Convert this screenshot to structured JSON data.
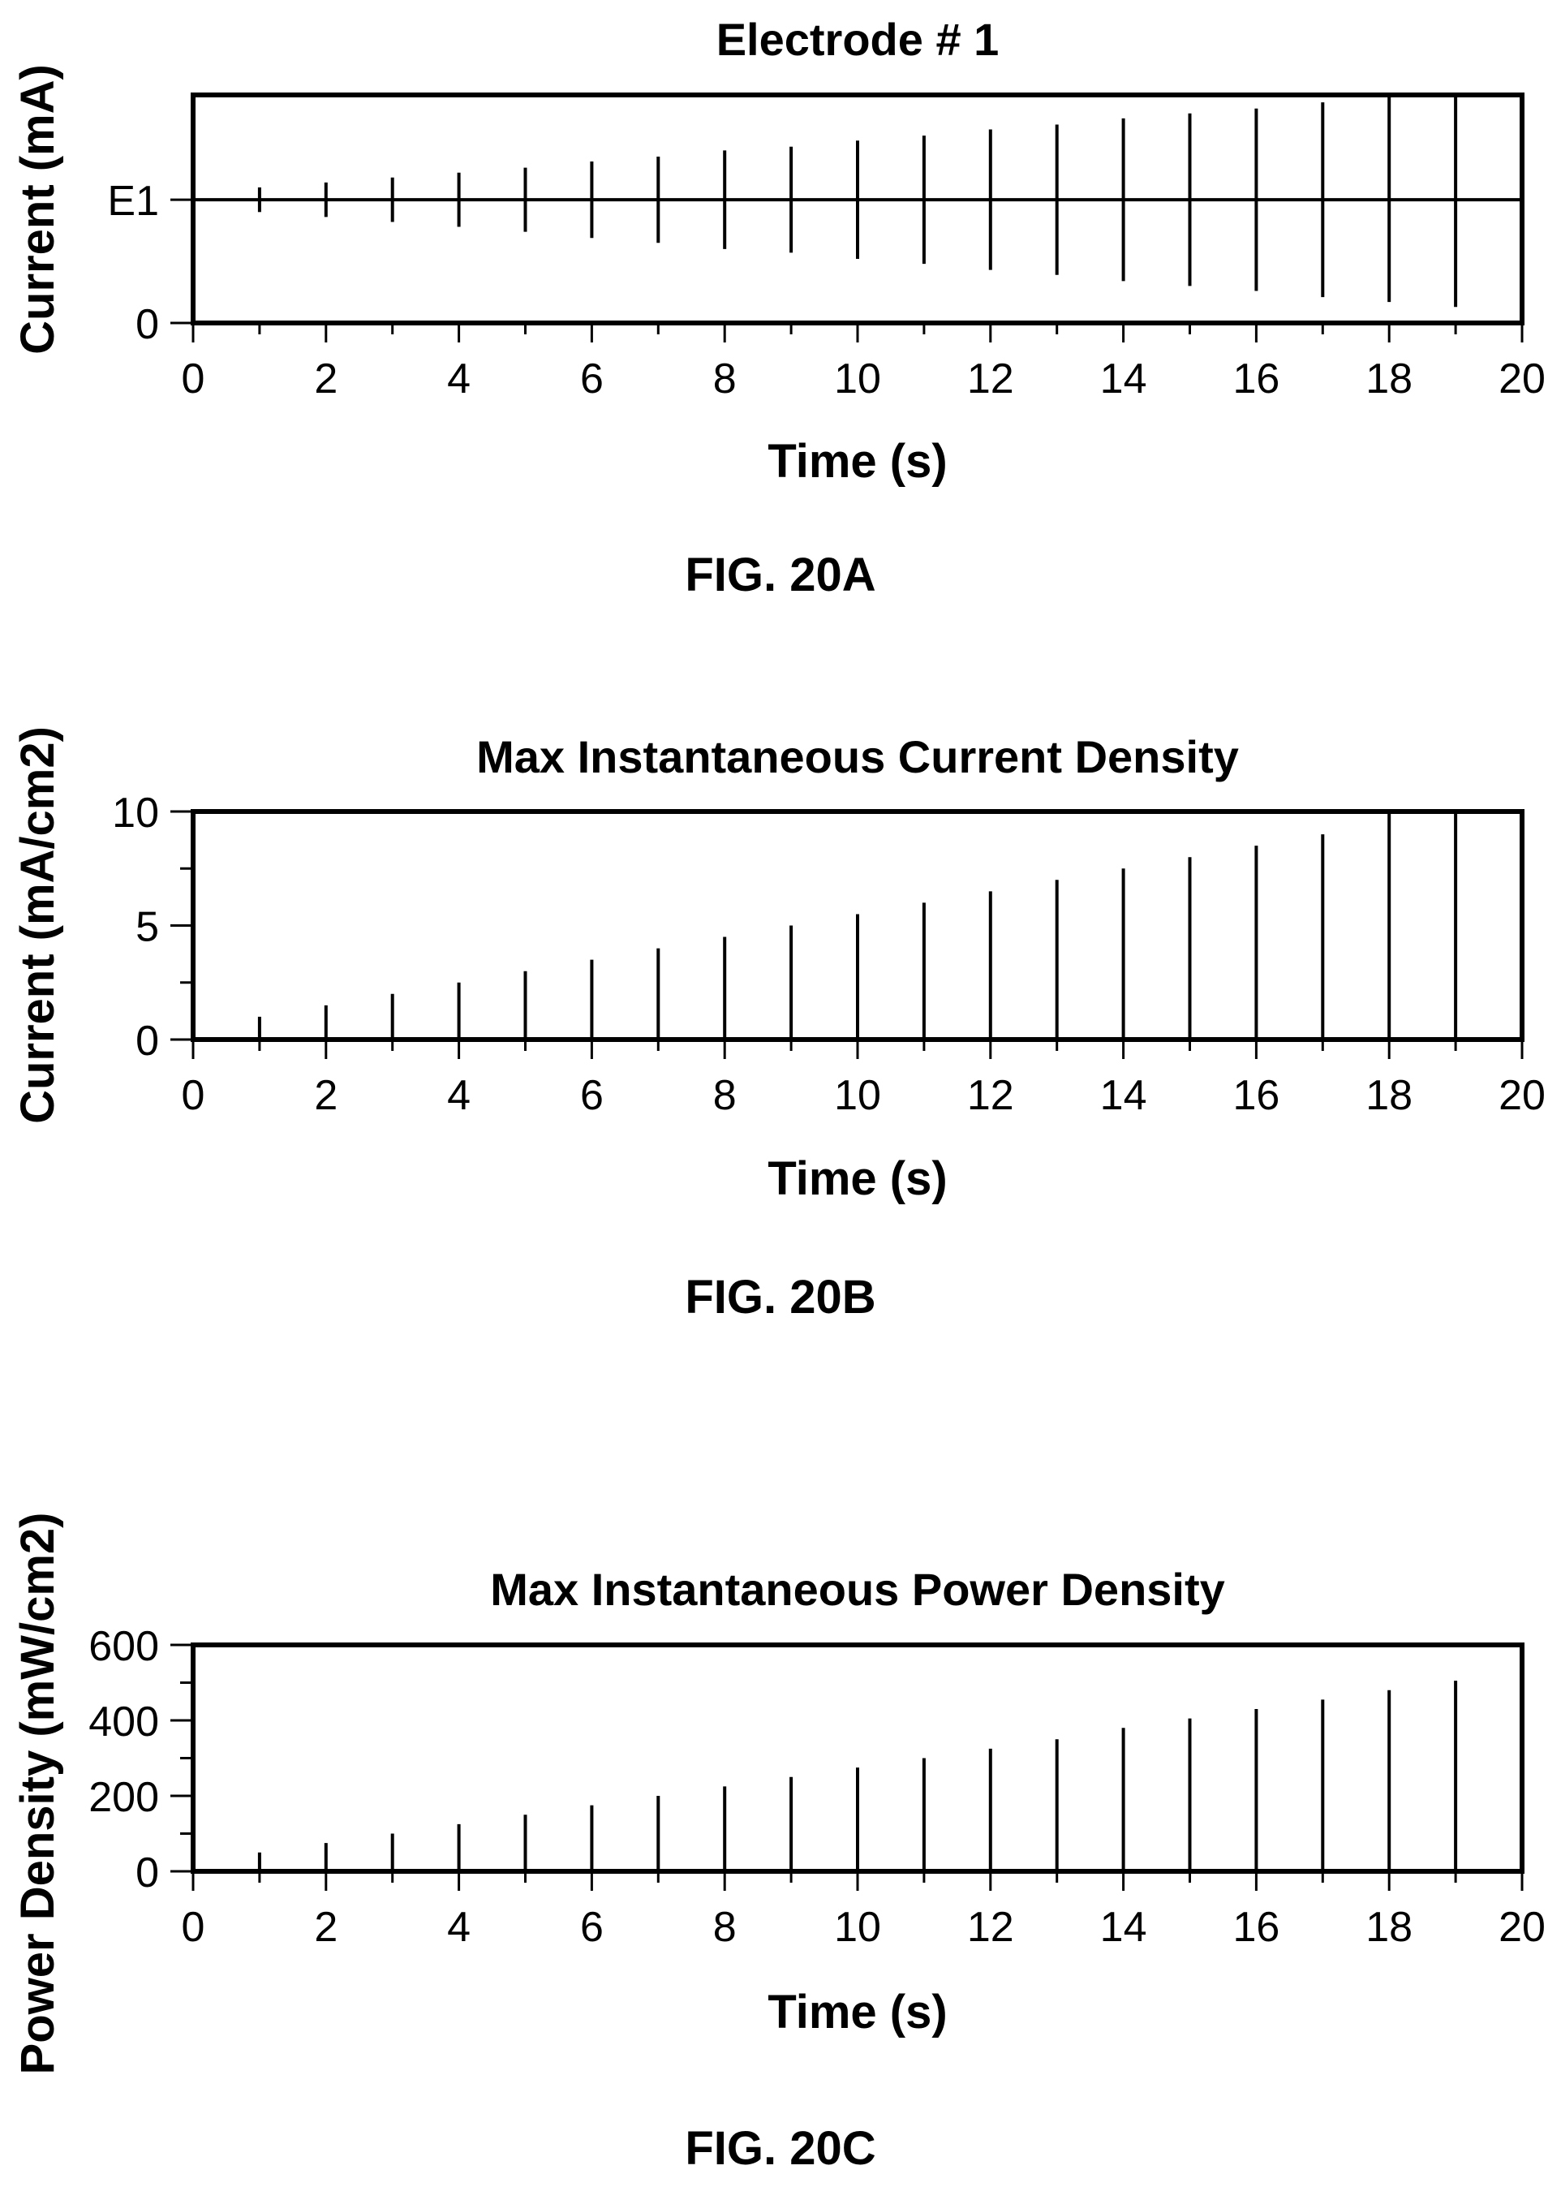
{
  "chart_data": [
    {
      "type": "line",
      "title": "Electrode # 1",
      "xlabel": "Time (s)",
      "ylabel": "Current (mA)",
      "caption": "FIG. 20A",
      "xlim": [
        0,
        20
      ],
      "xticks": [
        "0",
        "2",
        "4",
        "6",
        "8",
        "10",
        "12",
        "14",
        "16",
        "18",
        "20"
      ],
      "yticks": [
        {
          "value": 0,
          "label": "0"
        },
        {
          "value": 1,
          "label": "E1"
        }
      ],
      "ylim": [
        0,
        1.85
      ],
      "grid": false,
      "baseline": 1,
      "series": [
        {
          "style": "symmetric-pulse",
          "x": [
            1,
            2,
            3,
            4,
            5,
            6,
            7,
            8,
            9,
            10,
            11,
            12,
            13,
            14,
            15,
            16,
            17,
            18,
            19
          ],
          "amplitude": [
            0.1,
            0.14,
            0.18,
            0.22,
            0.26,
            0.31,
            0.35,
            0.4,
            0.43,
            0.48,
            0.52,
            0.57,
            0.61,
            0.66,
            0.7,
            0.74,
            0.79,
            0.83,
            0.87
          ]
        }
      ]
    },
    {
      "type": "bar",
      "title": "Max Instantaneous Current Density",
      "xlabel": "Time (s)",
      "ylabel": "Current (mA/cm2)",
      "caption": "FIG. 20B",
      "xlim": [
        0,
        20
      ],
      "xticks": [
        "0",
        "2",
        "4",
        "6",
        "8",
        "10",
        "12",
        "14",
        "16",
        "18",
        "20"
      ],
      "yticks": [
        {
          "value": 0,
          "label": "0"
        },
        {
          "value": 5,
          "label": "5"
        },
        {
          "value": 10,
          "label": "10"
        }
      ],
      "yminor": [
        2.5,
        7.5
      ],
      "ylim": [
        0,
        10
      ],
      "grid": false,
      "series": [
        {
          "x": [
            1,
            2,
            3,
            4,
            5,
            6,
            7,
            8,
            9,
            10,
            11,
            12,
            13,
            14,
            15,
            16,
            17,
            18,
            19
          ],
          "values": [
            1.0,
            1.5,
            2.0,
            2.5,
            3.0,
            3.5,
            4.0,
            4.5,
            5.0,
            5.5,
            6.0,
            6.5,
            7.0,
            7.5,
            8.0,
            8.5,
            9.0,
            10.0,
            10.0
          ]
        }
      ]
    },
    {
      "type": "bar",
      "title": "Max Instantaneous Power Density",
      "xlabel": "Time (s)",
      "ylabel": "Power Density (mW/cm2)",
      "caption": "FIG. 20C",
      "xlim": [
        0,
        20
      ],
      "xticks": [
        "0",
        "2",
        "4",
        "6",
        "8",
        "10",
        "12",
        "14",
        "16",
        "18",
        "20"
      ],
      "yticks": [
        {
          "value": 0,
          "label": "0"
        },
        {
          "value": 200,
          "label": "200"
        },
        {
          "value": 400,
          "label": "400"
        },
        {
          "value": 600,
          "label": "600"
        }
      ],
      "yminor": [
        100,
        300,
        500
      ],
      "ylim": [
        0,
        600
      ],
      "grid": false,
      "series": [
        {
          "x": [
            1,
            2,
            3,
            4,
            5,
            6,
            7,
            8,
            9,
            10,
            11,
            12,
            13,
            14,
            15,
            16,
            17,
            18,
            19
          ],
          "values": [
            50,
            75,
            100,
            125,
            150,
            175,
            200,
            225,
            250,
            275,
            300,
            325,
            350,
            380,
            405,
            430,
            455,
            480,
            505
          ]
        }
      ]
    }
  ]
}
